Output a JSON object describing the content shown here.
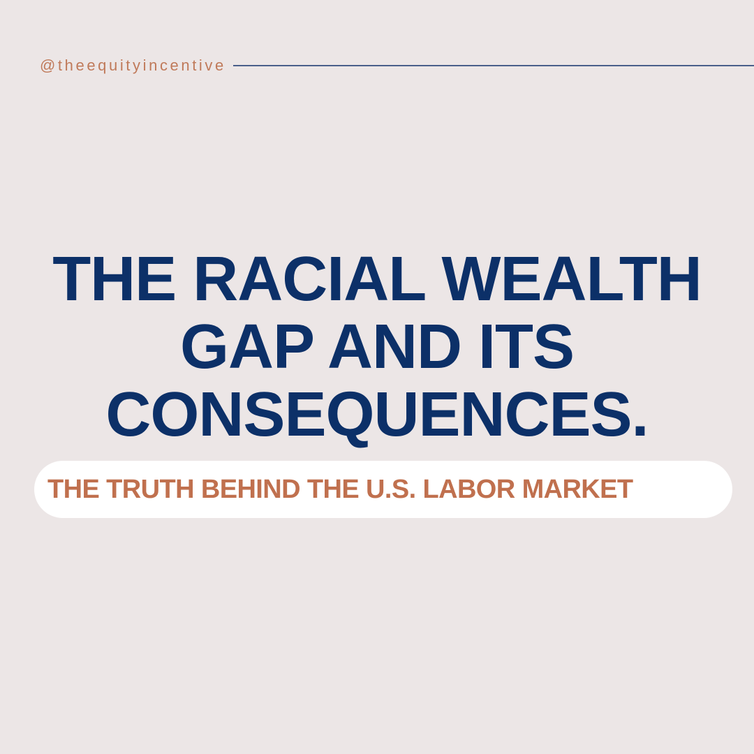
{
  "handle": "@theequityincentive",
  "title_lines": [
    "THE RACIAL WEALTH",
    "GAP AND ITS",
    "CONSEQUENCES."
  ],
  "subtitle": "THE TRUTH BEHIND THE U.S. LABOR MARKET",
  "colors": {
    "background": "#ece6e6",
    "title": "#0c3068",
    "accent": "#c0704e",
    "rule": "#4a5f8a",
    "pill": "#ffffff"
  }
}
